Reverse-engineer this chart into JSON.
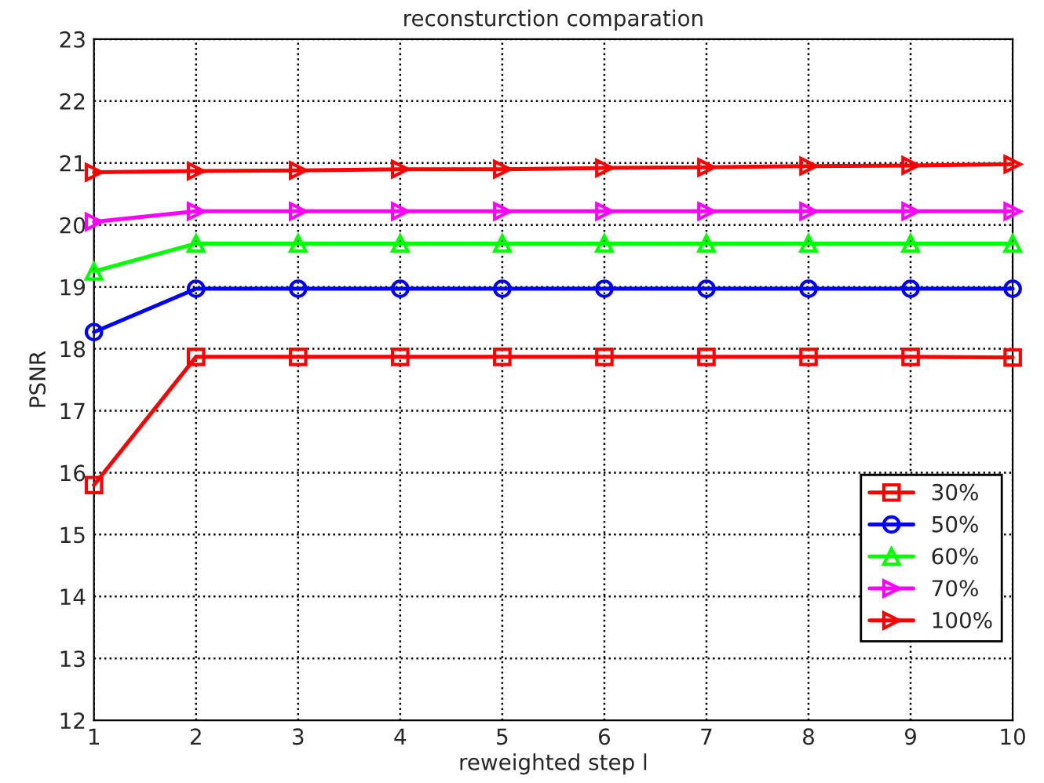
{
  "chart_data": {
    "type": "line",
    "title": "reconsturction comparation",
    "xlabel": "reweighted step l",
    "ylabel": "PSNR",
    "x": [
      1,
      2,
      3,
      4,
      5,
      6,
      7,
      8,
      9,
      10
    ],
    "series": [
      {
        "name": "30%",
        "color": "#ff0000",
        "marker": "square",
        "values": [
          15.8,
          17.87,
          17.87,
          17.87,
          17.87,
          17.87,
          17.87,
          17.87,
          17.87,
          17.86
        ]
      },
      {
        "name": "50%",
        "color": "#0000ff",
        "marker": "circle",
        "values": [
          18.27,
          18.97,
          18.97,
          18.97,
          18.97,
          18.97,
          18.97,
          18.97,
          18.97,
          18.97
        ]
      },
      {
        "name": "60%",
        "color": "#00ff00",
        "marker": "triangle",
        "values": [
          19.25,
          19.7,
          19.7,
          19.7,
          19.7,
          19.7,
          19.7,
          19.7,
          19.7,
          19.7
        ]
      },
      {
        "name": "70%",
        "color": "#ff00ff",
        "marker": "triangle-right",
        "values": [
          20.05,
          20.22,
          20.22,
          20.22,
          20.22,
          20.22,
          20.22,
          20.22,
          20.22,
          20.22
        ]
      },
      {
        "name": "100%",
        "color": "#ff0000",
        "marker": "triangle-right",
        "values": [
          20.85,
          20.87,
          20.88,
          20.9,
          20.9,
          20.92,
          20.93,
          20.95,
          20.96,
          20.98
        ]
      }
    ],
    "xlim": [
      1,
      10
    ],
    "xticks": [
      1,
      2,
      3,
      4,
      5,
      6,
      7,
      8,
      9,
      10
    ],
    "ylim": [
      12,
      23
    ],
    "yticks": [
      12,
      13,
      14,
      15,
      16,
      17,
      18,
      19,
      20,
      21,
      22,
      23
    ],
    "grid": true,
    "legend": "bottom right",
    "line_style": "solid"
  }
}
